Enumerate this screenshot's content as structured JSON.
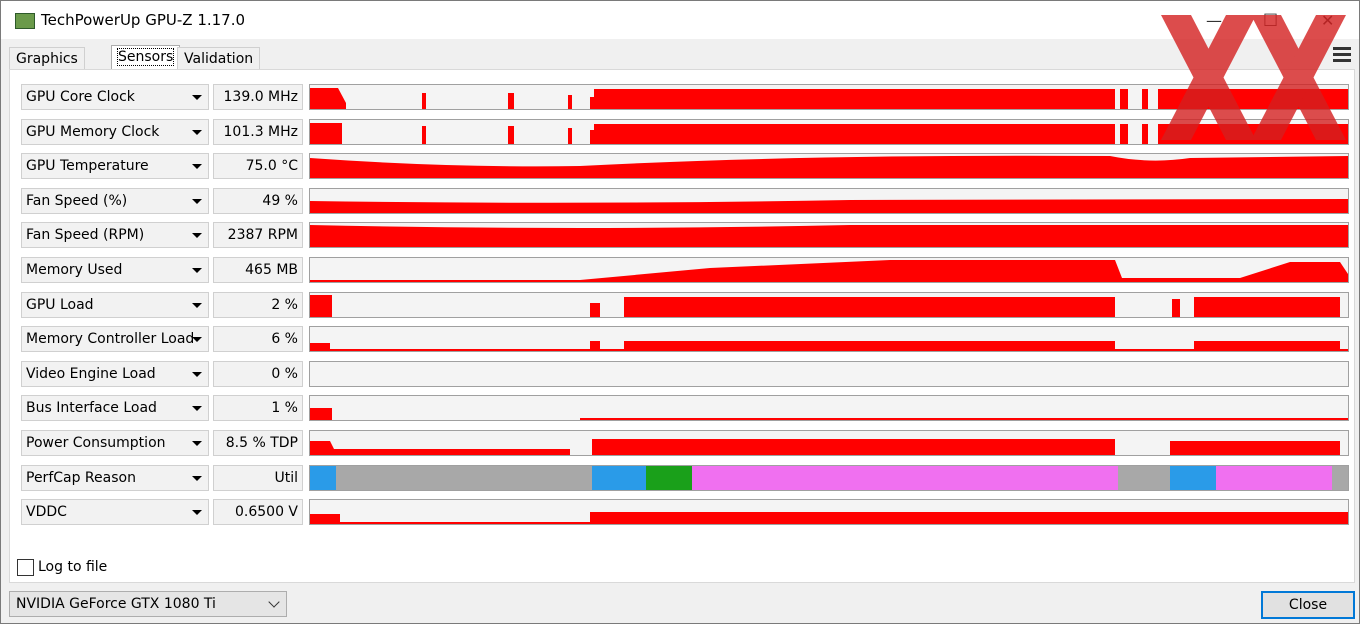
{
  "window": {
    "title": "TechPowerUp GPU-Z 1.17.0"
  },
  "tabs": [
    "Graphics Card",
    "Sensors",
    "Validation"
  ],
  "sensors": [
    {
      "name": "GPU Core Clock",
      "value": "139.0 MHz"
    },
    {
      "name": "GPU Memory Clock",
      "value": "101.3 MHz"
    },
    {
      "name": "GPU Temperature",
      "value": "75.0 °C"
    },
    {
      "name": "Fan Speed (%)",
      "value": "49 %"
    },
    {
      "name": "Fan Speed (RPM)",
      "value": "2387 RPM"
    },
    {
      "name": "Memory Used",
      "value": "465 MB"
    },
    {
      "name": "GPU Load",
      "value": "2 %"
    },
    {
      "name": "Memory Controller Load",
      "value": "6 %"
    },
    {
      "name": "Video Engine Load",
      "value": "0 %"
    },
    {
      "name": "Bus Interface Load",
      "value": "1 %"
    },
    {
      "name": "Power Consumption",
      "value": "8.5 % TDP"
    },
    {
      "name": "PerfCap Reason",
      "value": "Util"
    },
    {
      "name": "VDDC",
      "value": "0.6500 V"
    }
  ],
  "log_to_file": "Log to file",
  "gpu_select": "NVIDIA GeForce GTX 1080 Ti",
  "close_button": "Close"
}
